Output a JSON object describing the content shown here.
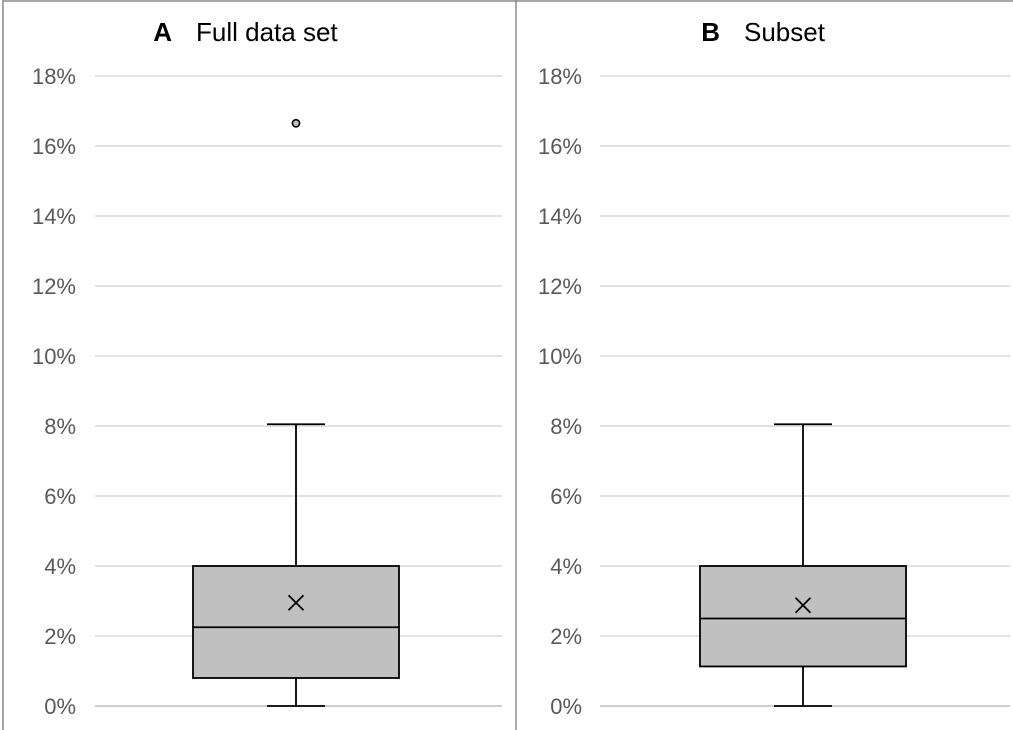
{
  "chart_data": [
    {
      "type": "box",
      "panel_letter": "A",
      "title": "Full data set",
      "ylim": [
        0,
        18
      ],
      "ytick_labels": [
        "0%",
        "2%",
        "4%",
        "6%",
        "8%",
        "10%",
        "12%",
        "14%",
        "16%",
        "18%"
      ],
      "grid": true,
      "box": {
        "min": 0,
        "q1": 0.8,
        "median": 2.25,
        "q3": 4.0,
        "max": 8.05,
        "mean": 2.95,
        "outliers": [
          16.65
        ]
      }
    },
    {
      "type": "box",
      "panel_letter": "B",
      "title": "Subset",
      "ylim": [
        0,
        18
      ],
      "ytick_labels": [
        "0%",
        "2%",
        "4%",
        "6%",
        "8%",
        "10%",
        "12%",
        "14%",
        "16%",
        "18%"
      ],
      "grid": true,
      "box": {
        "min": 0,
        "q1": 1.13,
        "median": 2.5,
        "q3": 4.0,
        "max": 8.05,
        "mean": 2.88,
        "outliers": []
      }
    }
  ],
  "colors": {
    "box_fill": "#c0c0c0",
    "line": "#000000",
    "grid": "#d9d9d9",
    "frame": "#8c8c8c",
    "tick_text": "#595959",
    "title_text": "#000000"
  }
}
